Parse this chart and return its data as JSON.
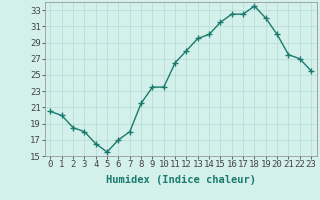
{
  "x": [
    0,
    1,
    2,
    3,
    4,
    5,
    6,
    7,
    8,
    9,
    10,
    11,
    12,
    13,
    14,
    15,
    16,
    17,
    18,
    19,
    20,
    21,
    22,
    23
  ],
  "y": [
    20.5,
    20.0,
    18.5,
    18.0,
    16.5,
    15.5,
    17.0,
    18.0,
    21.5,
    23.5,
    23.5,
    26.5,
    28.0,
    29.5,
    30.0,
    31.5,
    32.5,
    32.5,
    33.5,
    32.0,
    30.0,
    27.5,
    27.0,
    25.5
  ],
  "xlabel": "Humidex (Indice chaleur)",
  "ylim": [
    15,
    34
  ],
  "xlim": [
    -0.5,
    23.5
  ],
  "yticks": [
    15,
    17,
    19,
    21,
    23,
    25,
    27,
    29,
    31,
    33
  ],
  "xticks": [
    0,
    1,
    2,
    3,
    4,
    5,
    6,
    7,
    8,
    9,
    10,
    11,
    12,
    13,
    14,
    15,
    16,
    17,
    18,
    19,
    20,
    21,
    22,
    23
  ],
  "line_color": "#1a7a6e",
  "marker_color": "#1a7a6e",
  "bg_color": "#d4f0eb",
  "grid_color": "#b8ddd8",
  "spine_color": "#999999",
  "xlabel_fontsize": 7.5,
  "tick_fontsize": 6.5,
  "marker": "+",
  "markersize": 4,
  "linewidth": 1.0
}
